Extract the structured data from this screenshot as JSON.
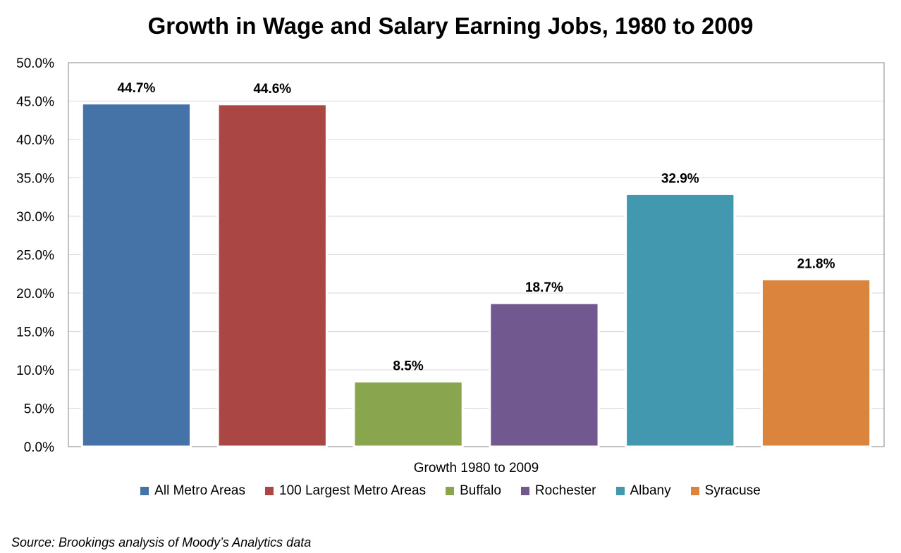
{
  "chart_data": {
    "type": "bar",
    "title": "Growth in Wage and Salary Earning Jobs, 1980 to 2009",
    "xlabel": "Growth 1980 to 2009",
    "ylabel": "",
    "ylim": [
      0,
      50
    ],
    "yticks": [
      "0.0%",
      "5.0%",
      "10.0%",
      "15.0%",
      "20.0%",
      "25.0%",
      "30.0%",
      "35.0%",
      "40.0%",
      "45.0%",
      "50.0%"
    ],
    "grid": true,
    "legend_position": "bottom",
    "series": [
      {
        "name": "All Metro Areas",
        "value": 44.7,
        "label": "44.7%",
        "color": "#4572A7"
      },
      {
        "name": "100 Largest Metro Areas",
        "value": 44.6,
        "label": "44.6%",
        "color": "#AA4643"
      },
      {
        "name": "Buffalo",
        "value": 8.5,
        "label": "8.5%",
        "color": "#89A54E"
      },
      {
        "name": "Rochester",
        "value": 18.7,
        "label": "18.7%",
        "color": "#71588F"
      },
      {
        "name": "Albany",
        "value": 32.9,
        "label": "32.9%",
        "color": "#4198AF"
      },
      {
        "name": "Syracuse",
        "value": 21.8,
        "label": "21.8%",
        "color": "#DB843D"
      }
    ]
  },
  "source": "Source: Brookings analysis of Moody’s Analytics data"
}
